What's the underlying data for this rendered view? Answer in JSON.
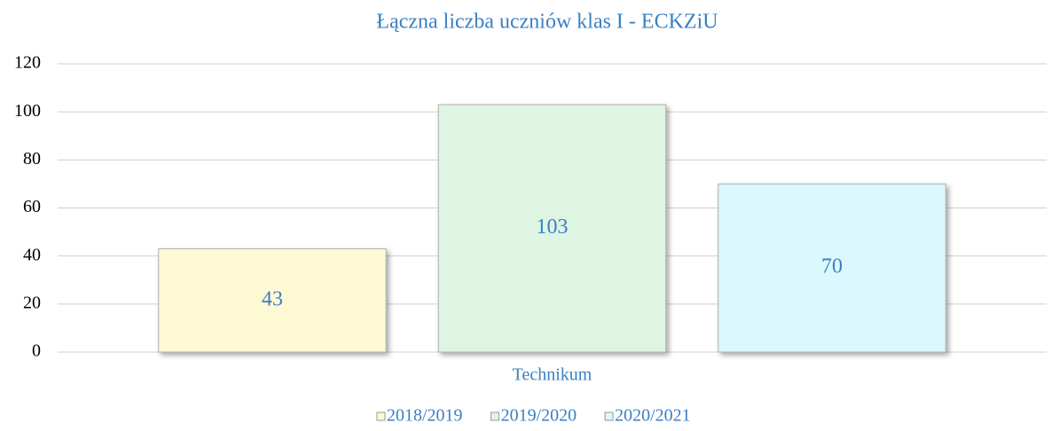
{
  "chart_data": {
    "type": "bar",
    "title": "Łączna liczba uczniów klas I - ECKZiU",
    "categories": [
      "Technikum"
    ],
    "series": [
      {
        "name": "2018/2019",
        "color": "#fdf9d4",
        "values": [
          43
        ]
      },
      {
        "name": "2019/2020",
        "color": "#def5e3",
        "values": [
          103
        ]
      },
      {
        "name": "2020/2021",
        "color": "#daf8fd",
        "values": [
          70
        ]
      }
    ],
    "ylim": [
      0,
      120
    ],
    "yticks": [
      0,
      20,
      40,
      60,
      80,
      100,
      120
    ],
    "grid": true,
    "legend": "bottom"
  }
}
